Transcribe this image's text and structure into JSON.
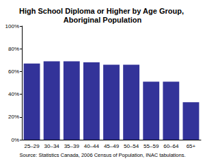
{
  "chart_data": {
    "type": "bar",
    "title": "High School Diploma or Higher by Age Group, Aboriginal Population",
    "annotations": [
      "Source: Statistics Canada, 2006 Census of Population, INAC tabulations."
    ],
    "categories": [
      "25–29",
      "30–34",
      "35–39",
      "40–44",
      "45–49",
      "50–54",
      "55–59",
      "60–64",
      "65+"
    ],
    "values": [
      67,
      69,
      69,
      68,
      66,
      66,
      51,
      51,
      33
    ],
    "color": "#333399",
    "ylim": [
      0,
      100
    ],
    "yticks": [
      {
        "value": 0,
        "label": "0%"
      },
      {
        "value": 20,
        "label": "20%"
      },
      {
        "value": 40,
        "label": "40%"
      },
      {
        "value": 60,
        "label": "60%"
      },
      {
        "value": 80,
        "label": "80%"
      },
      {
        "value": 100,
        "label": "100%"
      }
    ],
    "grid": false
  }
}
